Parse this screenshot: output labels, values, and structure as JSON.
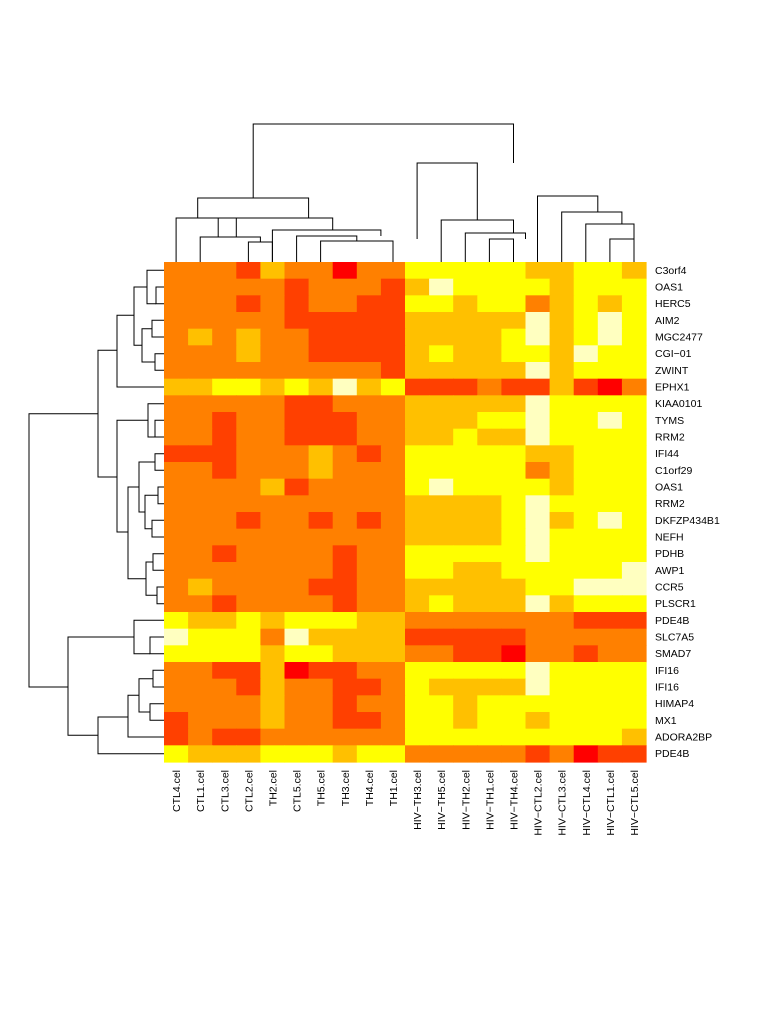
{
  "chart_data": {
    "type": "heatmap",
    "title": "",
    "xlabel": "",
    "ylabel": "",
    "columns": [
      "CTL4.cel",
      "CTL1.cel",
      "CTL3.cel",
      "CTL2.cel",
      "TH2.cel",
      "CTL5.cel",
      "TH5.cel",
      "TH3.cel",
      "TH4.cel",
      "TH1.cel",
      "HIV−TH3.cel",
      "HIV−TH5.cel",
      "HIV−TH2.cel",
      "HIV−TH1.cel",
      "HIV−TH4.cel",
      "HIV−CTL2.cel",
      "HIV−CTL3.cel",
      "HIV−CTL4.cel",
      "HIV−CTL1.cel",
      "HIV−CTL5.cel"
    ],
    "rows": [
      "C3orf4",
      "OAS1",
      "HERC5",
      "AIM2",
      "MGC2477",
      "CGI−01",
      "ZWINT",
      "EPHX1",
      "KIAA0101",
      "TYMS",
      "RRM2",
      "IFI44",
      "C1orf29",
      "OAS1",
      "RRM2",
      "DKFZP434B1",
      "NEFH",
      "PDHB",
      "AWP1",
      "CCR5",
      "PLSCR1",
      "PDE4B",
      "SLC7A5",
      "SMAD7",
      "IFI16",
      "IFI16",
      "HIMAP4",
      "MX1",
      "ADORA2BP",
      "PDE4B"
    ],
    "color_scale": [
      "#ff0000",
      "#ff4000",
      "#ff8000",
      "#ffc000",
      "#ffff00",
      "#ffffc0"
    ],
    "value_note": "cell values are color levels 0 (red) to 5 (pale yellow)",
    "values": [
      [
        2,
        2,
        2,
        1,
        3,
        2,
        2,
        0,
        2,
        2,
        4,
        4,
        4,
        4,
        4,
        3,
        3,
        4,
        4,
        3
      ],
      [
        2,
        2,
        2,
        2,
        2,
        1,
        2,
        2,
        2,
        1,
        3,
        5,
        4,
        4,
        4,
        4,
        3,
        4,
        4,
        4
      ],
      [
        2,
        2,
        2,
        1,
        2,
        1,
        2,
        2,
        1,
        1,
        4,
        4,
        3,
        4,
        4,
        2,
        3,
        4,
        3,
        4
      ],
      [
        2,
        2,
        2,
        2,
        2,
        1,
        1,
        1,
        1,
        1,
        3,
        3,
        3,
        3,
        3,
        5,
        3,
        4,
        5,
        4
      ],
      [
        2,
        3,
        2,
        3,
        2,
        2,
        1,
        1,
        1,
        1,
        3,
        3,
        3,
        3,
        4,
        5,
        3,
        4,
        5,
        4
      ],
      [
        2,
        2,
        2,
        3,
        2,
        2,
        1,
        1,
        1,
        1,
        3,
        4,
        3,
        3,
        4,
        4,
        3,
        5,
        4,
        4
      ],
      [
        2,
        2,
        2,
        2,
        2,
        2,
        2,
        2,
        2,
        1,
        3,
        3,
        3,
        3,
        3,
        5,
        3,
        4,
        4,
        4
      ],
      [
        3,
        3,
        4,
        4,
        3,
        4,
        3,
        5,
        3,
        4,
        1,
        1,
        1,
        2,
        1,
        1,
        3,
        1,
        0,
        2
      ],
      [
        2,
        2,
        2,
        2,
        2,
        1,
        1,
        2,
        2,
        2,
        3,
        3,
        3,
        3,
        3,
        5,
        4,
        4,
        4,
        4
      ],
      [
        2,
        2,
        1,
        2,
        2,
        1,
        1,
        1,
        2,
        2,
        3,
        3,
        3,
        4,
        4,
        5,
        4,
        4,
        5,
        4
      ],
      [
        2,
        2,
        1,
        2,
        2,
        1,
        1,
        1,
        2,
        2,
        3,
        3,
        4,
        3,
        3,
        5,
        4,
        4,
        4,
        4
      ],
      [
        1,
        1,
        1,
        2,
        2,
        2,
        3,
        2,
        1,
        2,
        4,
        4,
        4,
        4,
        4,
        3,
        3,
        4,
        4,
        4
      ],
      [
        2,
        2,
        1,
        2,
        2,
        2,
        3,
        2,
        2,
        2,
        4,
        4,
        4,
        4,
        4,
        2,
        3,
        4,
        4,
        4
      ],
      [
        2,
        2,
        2,
        2,
        3,
        1,
        2,
        2,
        2,
        2,
        4,
        5,
        4,
        4,
        4,
        4,
        3,
        4,
        4,
        4
      ],
      [
        2,
        2,
        2,
        2,
        2,
        2,
        2,
        2,
        2,
        2,
        3,
        3,
        3,
        3,
        4,
        5,
        4,
        4,
        4,
        4
      ],
      [
        2,
        2,
        2,
        1,
        2,
        2,
        1,
        2,
        1,
        2,
        3,
        3,
        3,
        3,
        4,
        5,
        3,
        4,
        5,
        4
      ],
      [
        2,
        2,
        2,
        2,
        2,
        2,
        2,
        2,
        2,
        2,
        3,
        3,
        3,
        3,
        4,
        5,
        4,
        4,
        4,
        4
      ],
      [
        2,
        2,
        1,
        2,
        2,
        2,
        2,
        1,
        2,
        2,
        4,
        4,
        4,
        4,
        4,
        5,
        4,
        4,
        4,
        4
      ],
      [
        2,
        2,
        2,
        2,
        2,
        2,
        2,
        1,
        2,
        2,
        4,
        4,
        3,
        3,
        4,
        4,
        4,
        4,
        4,
        5
      ],
      [
        2,
        3,
        2,
        2,
        2,
        2,
        1,
        1,
        2,
        2,
        3,
        3,
        3,
        3,
        3,
        4,
        4,
        5,
        5,
        5
      ],
      [
        2,
        2,
        1,
        2,
        2,
        2,
        2,
        1,
        2,
        2,
        3,
        4,
        3,
        3,
        3,
        5,
        3,
        4,
        4,
        4
      ],
      [
        4,
        3,
        3,
        4,
        3,
        4,
        4,
        4,
        3,
        3,
        2,
        2,
        2,
        2,
        2,
        2,
        2,
        1,
        1,
        1
      ],
      [
        5,
        4,
        4,
        4,
        2,
        5,
        3,
        3,
        3,
        3,
        1,
        1,
        1,
        1,
        1,
        2,
        2,
        2,
        2,
        2
      ],
      [
        4,
        4,
        4,
        4,
        3,
        4,
        4,
        3,
        3,
        3,
        2,
        2,
        1,
        1,
        0,
        2,
        2,
        1,
        2,
        2
      ],
      [
        2,
        2,
        1,
        1,
        3,
        0,
        1,
        1,
        2,
        2,
        4,
        4,
        4,
        4,
        4,
        5,
        4,
        4,
        4,
        4
      ],
      [
        2,
        2,
        2,
        1,
        3,
        2,
        2,
        1,
        1,
        2,
        4,
        3,
        3,
        3,
        3,
        5,
        4,
        4,
        4,
        4
      ],
      [
        2,
        2,
        2,
        2,
        3,
        2,
        2,
        1,
        2,
        2,
        4,
        4,
        3,
        4,
        4,
        4,
        4,
        4,
        4,
        4
      ],
      [
        1,
        2,
        2,
        2,
        3,
        2,
        2,
        1,
        1,
        2,
        4,
        4,
        3,
        4,
        4,
        3,
        4,
        4,
        4,
        4
      ],
      [
        1,
        2,
        1,
        1,
        2,
        2,
        2,
        2,
        2,
        2,
        4,
        4,
        4,
        4,
        4,
        4,
        4,
        4,
        4,
        3
      ],
      [
        4,
        3,
        3,
        3,
        4,
        4,
        4,
        3,
        4,
        4,
        2,
        2,
        2,
        2,
        2,
        1,
        2,
        0,
        1,
        1
      ]
    ],
    "column_dendrogram": [
      [
        7,
        8,
        0
      ],
      [
        9,
        10,
        1
      ],
      [
        10,
        11,
        2
      ],
      [
        11,
        12,
        3
      ],
      [
        12,
        13,
        4
      ],
      [
        14,
        15,
        5
      ],
      [
        16,
        17,
        6
      ],
      [
        18,
        19,
        7
      ],
      [
        20,
        21,
        8
      ],
      [
        22,
        23,
        9
      ],
      [
        23,
        24,
        10
      ],
      [
        25,
        26,
        11
      ],
      [
        26,
        27,
        12
      ],
      [
        28,
        29,
        13
      ],
      [
        30,
        31,
        14
      ],
      [
        32,
        33,
        15
      ],
      [
        34,
        35,
        16
      ],
      [
        36,
        37,
        17
      ],
      [
        38,
        39,
        18
      ]
    ],
    "row_dendrogram_order_note": "rows listed in dendrogram leaf order"
  }
}
